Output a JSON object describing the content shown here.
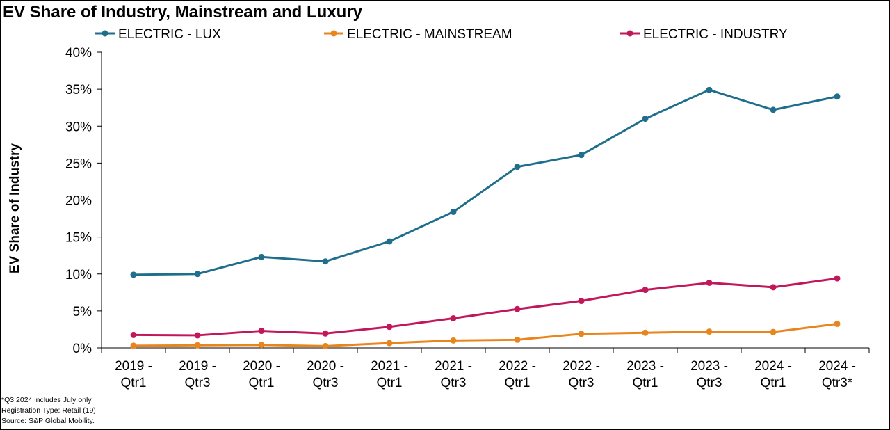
{
  "chart_data": {
    "type": "line",
    "title": "EV Share of Industry, Mainstream and Luxury",
    "xlabel": "",
    "ylabel": "EV Share of Industry",
    "ylim": [
      0,
      40
    ],
    "yticks": [
      "0%",
      "5%",
      "10%",
      "15%",
      "20%",
      "25%",
      "30%",
      "35%",
      "40%"
    ],
    "ytick_values": [
      0,
      5,
      10,
      15,
      20,
      25,
      30,
      35,
      40
    ],
    "categories": [
      [
        "2019 -",
        "Qtr1"
      ],
      [
        "2019 -",
        "Qtr3"
      ],
      [
        "2020 -",
        "Qtr1"
      ],
      [
        "2020 -",
        "Qtr3"
      ],
      [
        "2021 -",
        "Qtr1"
      ],
      [
        "2021 -",
        "Qtr3"
      ],
      [
        "2022 -",
        "Qtr1"
      ],
      [
        "2022 -",
        "Qtr3"
      ],
      [
        "2023 -",
        "Qtr1"
      ],
      [
        "2023 -",
        "Qtr3"
      ],
      [
        "2024 -",
        "Qtr1"
      ],
      [
        "2024 -",
        "Qtr3*"
      ]
    ],
    "legend_position": "top",
    "grid": false,
    "series": [
      {
        "name": "ELECTRIC - LUX",
        "color": "#1F6E8C",
        "values": [
          9.9,
          10.0,
          12.3,
          11.7,
          14.4,
          18.4,
          24.5,
          26.1,
          31.0,
          34.9,
          32.2,
          34.0
        ]
      },
      {
        "name": "ELECTRIC - MAINSTREAM",
        "color": "#E8851C",
        "values": [
          0.3,
          0.35,
          0.4,
          0.25,
          0.65,
          1.0,
          1.1,
          1.9,
          2.05,
          2.2,
          2.15,
          3.25
        ]
      },
      {
        "name": "ELECTRIC - INDUSTRY",
        "color": "#C2185B",
        "values": [
          1.75,
          1.7,
          2.3,
          1.95,
          2.85,
          4.0,
          5.25,
          6.35,
          7.85,
          8.8,
          8.2,
          9.4
        ]
      }
    ]
  },
  "footnotes": [
    "*Q3 2024 includes July only",
    "Registration Type: Retail (19)",
    "Source: S&P Global Mobility."
  ]
}
